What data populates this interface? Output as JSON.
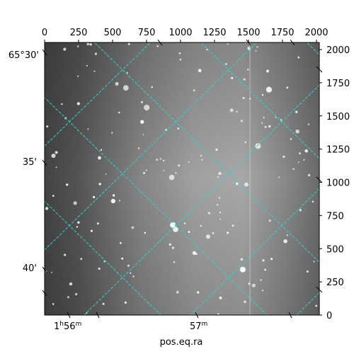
{
  "figure": {
    "xlabel": "pos.eq.ra",
    "top_axis_ticks": [
      "0",
      "250",
      "500",
      "750",
      "1000",
      "1250",
      "1500",
      "1750",
      "2000"
    ],
    "right_axis_ticks": [
      "0",
      "250",
      "500",
      "750",
      "1000",
      "1250",
      "1500",
      "1750",
      "2000"
    ],
    "left_dec_labels": [
      "65°30'",
      "35'",
      "40'"
    ],
    "bottom_ra_labels": [
      {
        "hours": "1",
        "h": "h",
        "minutes": "56",
        "m": "m"
      },
      {
        "hours": "",
        "h": "",
        "minutes": "57",
        "m": "m"
      }
    ],
    "grid_color": "#2fd3d3",
    "image_style": "grayscale astronomical star field"
  }
}
